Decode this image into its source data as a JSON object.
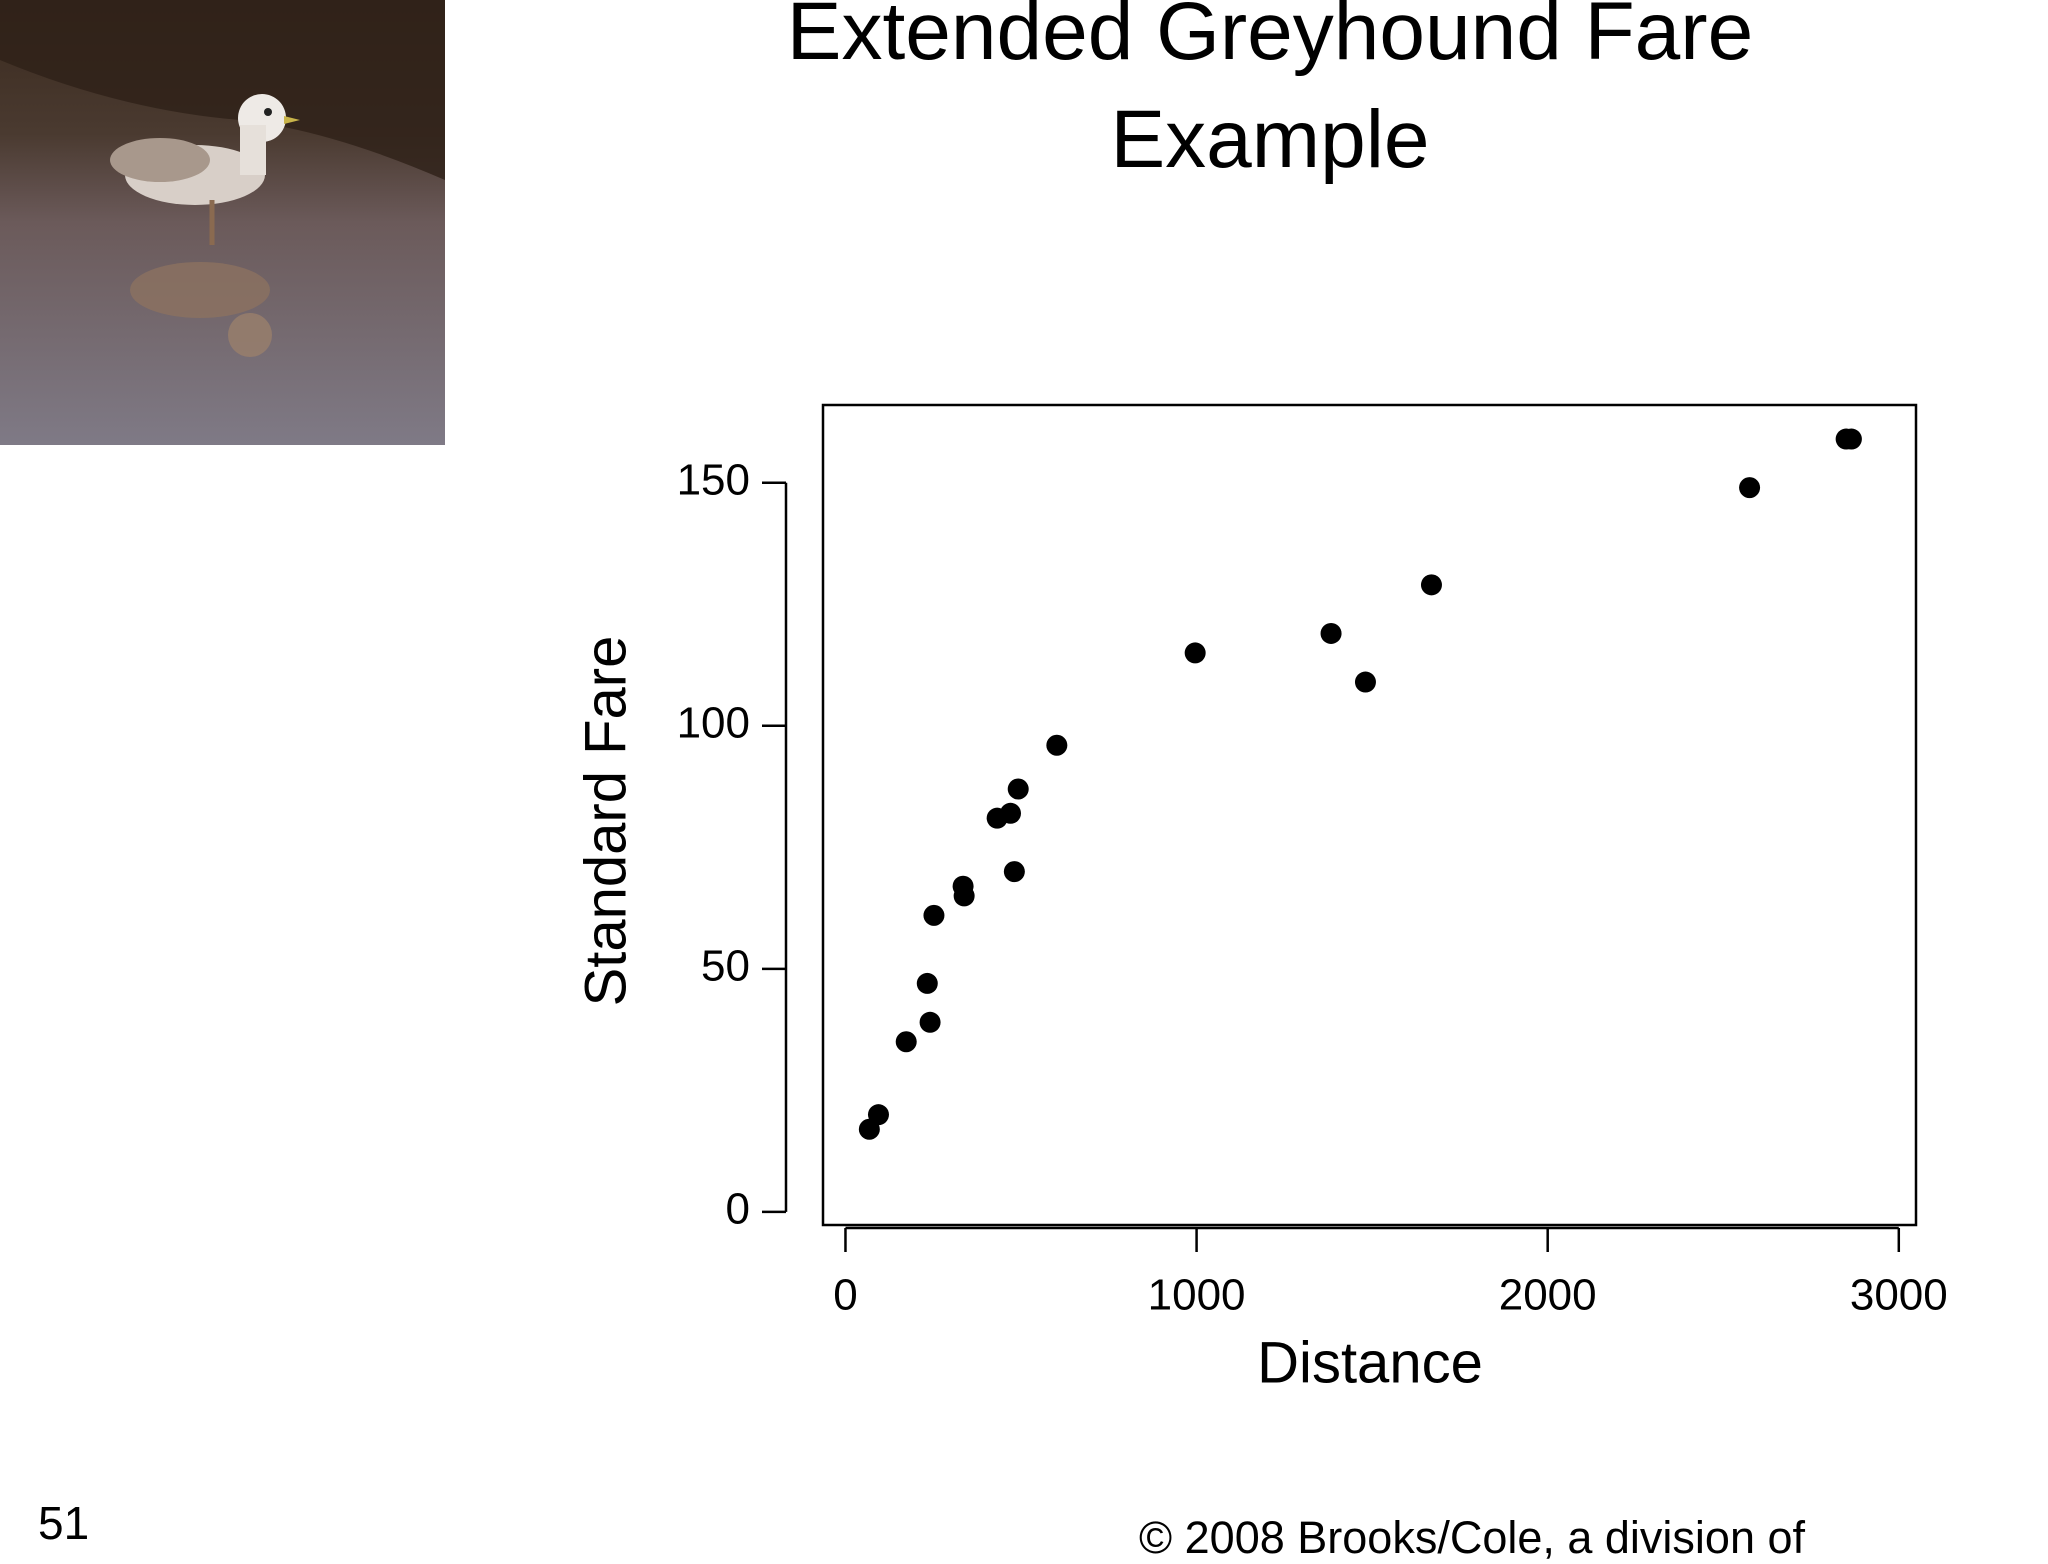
{
  "title": "Extended Greyhound Fare Example",
  "slide_number": "51",
  "footer": "© 2008 Brooks/Cole, a division of",
  "chart_data": {
    "type": "scatter",
    "x_label": "Distance",
    "y_label": "Standard Fare",
    "x": [
      68,
      94,
      173,
      233,
      241,
      252,
      335,
      338,
      432,
      470,
      481,
      492,
      602,
      996,
      1383,
      1481,
      1669,
      2575,
      2850,
      2865
    ],
    "values": [
      17,
      20,
      35,
      47,
      39,
      61,
      67,
      65,
      81,
      82,
      70,
      87,
      96,
      115,
      119,
      109,
      129,
      149,
      159,
      159
    ],
    "color": "#000000",
    "xlim": [
      -64,
      3049
    ],
    "ylim": [
      -2.7,
      166
    ],
    "xticks": [
      0,
      1000,
      2000,
      3000
    ],
    "yticks": [
      0,
      50,
      100,
      150
    ]
  }
}
